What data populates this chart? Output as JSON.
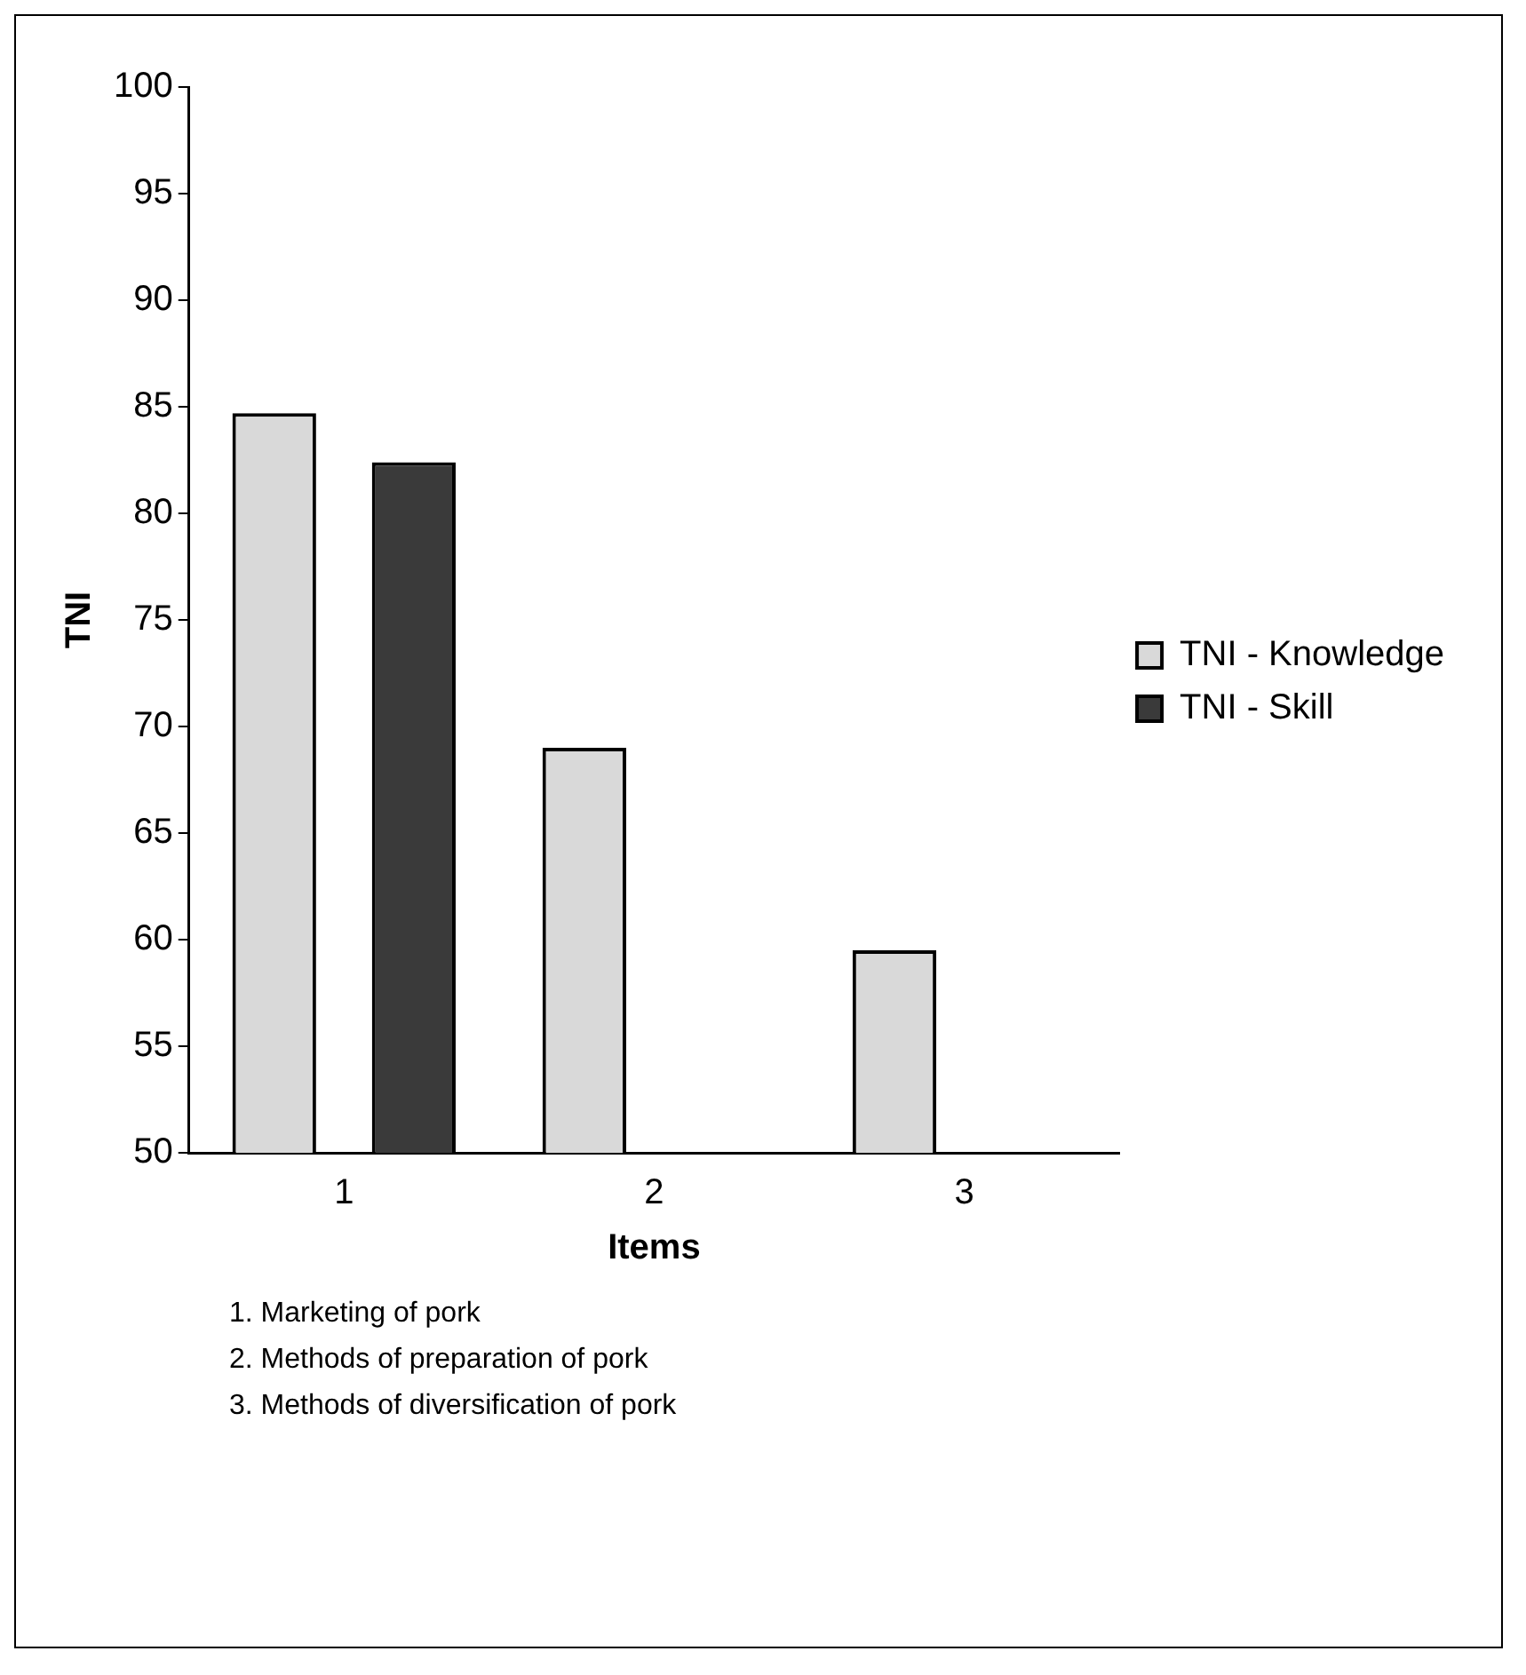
{
  "chart_data": {
    "type": "bar",
    "categories": [
      "1",
      "2",
      "3"
    ],
    "series": [
      {
        "name": "TNI - Knowledge",
        "color": "#d9d9d9",
        "values": [
          84.7,
          69.0,
          59.5
        ]
      },
      {
        "name": "TNI - Skill",
        "color": "#3a3a3a",
        "values": [
          82.4,
          null,
          null
        ]
      }
    ],
    "xlabel": "Items",
    "ylabel": "TNI",
    "ylim": [
      50,
      100
    ],
    "yticks": [
      50,
      55,
      60,
      65,
      70,
      75,
      80,
      85,
      90,
      95,
      100
    ],
    "legend": "right",
    "annotations": [
      "1. Marketing of pork",
      "2. Methods of preparation of pork",
      "3. Methods of diversification of pork"
    ]
  }
}
